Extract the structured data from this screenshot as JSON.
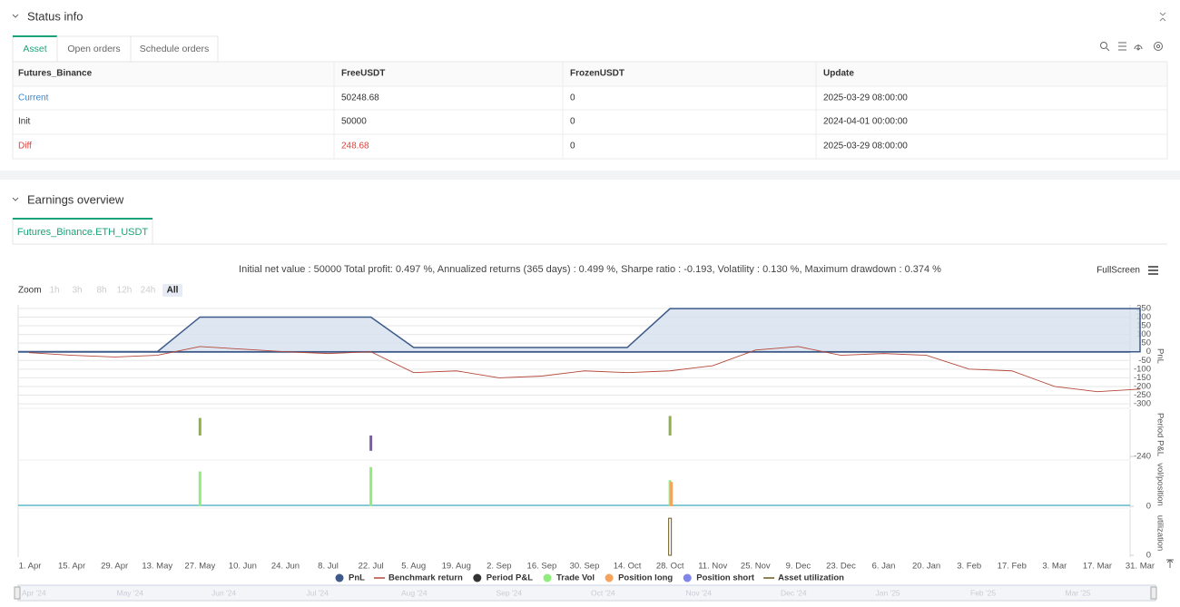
{
  "status": {
    "title": "Status info",
    "tabs": [
      "Asset",
      "Open orders",
      "Schedule orders"
    ],
    "table": {
      "header": [
        "Futures_Binance",
        "FreeUSDT",
        "FrozenUSDT",
        "Update"
      ],
      "rows": [
        [
          "Current",
          "50248.68",
          "0",
          "2025-03-29 08:00:00"
        ],
        [
          "Init",
          "50000",
          "0",
          "2024-04-01 00:00:00"
        ],
        [
          "Diff",
          "248.68",
          "0",
          "2025-03-29 08:00:00"
        ]
      ]
    }
  },
  "earnings": {
    "title": "Earnings overview",
    "tab": "Futures_Binance.ETH_USDT",
    "summary": "Initial net value : 50000 Total profit: 0.497 %, Annualized returns (365 days) : 0.499 %, Sharpe ratio : -0.193, Volatility : 0.130 %, Maximum drawdown : 0.374 %",
    "fullscreen": "FullScreen",
    "zoom_label": "Zoom",
    "zoom_buttons": [
      "1h",
      "3h",
      "8h",
      "12h",
      "24h",
      "All"
    ],
    "navigator": [
      "Apr '24",
      "May '24",
      "Jun '24",
      "Jul '24",
      "Aug '24",
      "Sep '24",
      "Oct '24",
      "Nov '24",
      "Dec '24",
      "Jan '25",
      "Feb '25",
      "Mar '25"
    ]
  },
  "chart_data": [
    {
      "type": "line",
      "ylabel": "PnL",
      "categories": [
        "1. Apr",
        "15. Apr",
        "29. Apr",
        "13. May",
        "27. May",
        "10. Jun",
        "24. Jun",
        "8. Jul",
        "22. Jul",
        "5. Aug",
        "19. Aug",
        "2. Sep",
        "16. Sep",
        "30. Sep",
        "14. Oct",
        "28. Oct",
        "11. Nov",
        "25. Nov",
        "9. Dec",
        "23. Dec",
        "6. Jan",
        "20. Jan",
        "3. Feb",
        "17. Feb",
        "3. Mar",
        "17. Mar",
        "31. Mar"
      ],
      "series": [
        {
          "name": "PnL",
          "color": "#3d5a8a",
          "fill": "#d6e0ee",
          "symbol": "dot",
          "values": [
            0,
            0,
            0,
            0,
            200,
            200,
            200,
            200,
            200,
            25,
            25,
            25,
            25,
            25,
            25,
            248.68,
            248.68,
            248.68,
            248.68,
            248.68,
            248.68,
            248.68,
            248.68,
            248.68,
            248.68,
            248.68,
            248.68
          ]
        },
        {
          "name": "Benchmark return",
          "color": "#b5473a",
          "symbol": "line",
          "values": [
            -5,
            -20,
            -30,
            -20,
            30,
            15,
            0,
            -10,
            0,
            -120,
            -110,
            -150,
            -140,
            -110,
            -120,
            -110,
            -80,
            10,
            30,
            -20,
            -10,
            -20,
            -100,
            -110,
            -200,
            -230,
            -215
          ]
        }
      ],
      "ylim": [
        -310,
        260
      ],
      "yticks": [
        250,
        200,
        150,
        100,
        50,
        0,
        -50,
        -100,
        -150,
        -200,
        -250,
        -300
      ],
      "grid": true
    },
    {
      "type": "bar",
      "ylabel": "Period P&L",
      "positive_color": "#8fae4c",
      "negative_color": "#7a5ca8",
      "series": [
        {
          "name": "Period P&L",
          "color": "#333333",
          "symbol": "dot",
          "values": [
            null,
            null,
            null,
            null,
            200,
            null,
            null,
            null,
            -175,
            null,
            null,
            null,
            null,
            null,
            null,
            223.68,
            null,
            null,
            null,
            null,
            null,
            null,
            null,
            null,
            null,
            null,
            null
          ]
        }
      ],
      "ylim": [
        -260,
        280
      ],
      "yticks": [
        -240
      ]
    },
    {
      "type": "bar",
      "ylabel": "vol/position",
      "series": [
        {
          "name": "Trade Vol",
          "color": "#90ed7d",
          "symbol": "dot",
          "values": [
            null,
            null,
            null,
            null,
            40,
            null,
            null,
            null,
            45,
            null,
            null,
            null,
            null,
            null,
            null,
            30,
            null,
            null,
            null,
            null,
            null,
            null,
            null,
            null,
            null,
            null,
            null
          ]
        },
        {
          "name": "Position long",
          "color": "#f7a35c",
          "symbol": "dot",
          "values": [
            null,
            null,
            null,
            null,
            null,
            null,
            null,
            null,
            null,
            null,
            null,
            null,
            null,
            null,
            null,
            28,
            null,
            null,
            null,
            null,
            null,
            null,
            null,
            null,
            null,
            null,
            null
          ]
        },
        {
          "name": "Position short",
          "color": "#8085e9",
          "symbol": "dot",
          "values": [
            null,
            null,
            null,
            null,
            null,
            null,
            null,
            null,
            null,
            null,
            null,
            null,
            null,
            null,
            null,
            null,
            null,
            null,
            null,
            null,
            null,
            null,
            null,
            null,
            null,
            null,
            null
          ]
        }
      ],
      "ylim": [
        0,
        50
      ],
      "yticks": [
        0
      ]
    },
    {
      "type": "bar",
      "ylabel": "utilization",
      "outline": true,
      "series": [
        {
          "name": "Asset utilization",
          "color": "#6b5a1e",
          "symbol": "line",
          "values": [
            null,
            null,
            null,
            null,
            null,
            null,
            null,
            null,
            null,
            null,
            null,
            null,
            null,
            null,
            null,
            1,
            null,
            null,
            null,
            null,
            null,
            null,
            null,
            null,
            null,
            null,
            null
          ]
        }
      ],
      "ylim": [
        0,
        1.2
      ],
      "yticks": [
        0
      ]
    }
  ]
}
